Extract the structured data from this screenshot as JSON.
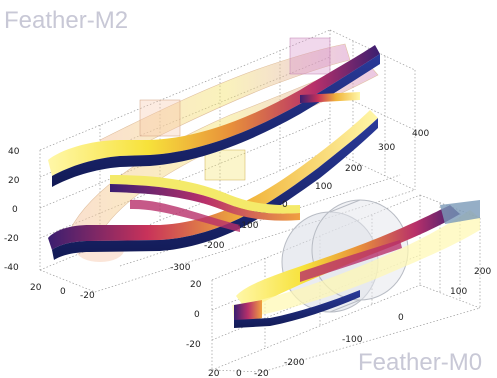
{
  "titles": {
    "top": "Feather-M2",
    "bottom": "Feather-M0"
  },
  "top_plot": {
    "z_ticks": [
      "40",
      "20",
      "0",
      "-20",
      "-40"
    ],
    "x_ticks": [
      "20",
      "0",
      "-20"
    ],
    "y_ticks": [
      "400",
      "300",
      "200",
      "100",
      "0",
      "-100",
      "-200",
      "-300"
    ]
  },
  "bottom_plot": {
    "z_ticks": [
      "20",
      "0",
      "-20"
    ],
    "x_ticks": [
      "20",
      "0",
      "-20"
    ],
    "y_ticks": [
      "200",
      "100",
      "0",
      "-100",
      "-200"
    ]
  },
  "colors": {
    "coil_edge": "#1e2a78",
    "coil_face_hot": "#f5e63c",
    "coil_face_mid": "#c8325a",
    "grid": "#9a9a9a",
    "title": "#c8c8d6"
  }
}
